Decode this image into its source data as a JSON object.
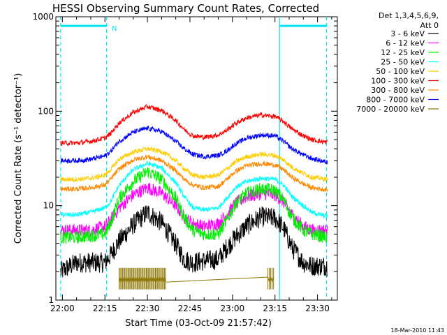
{
  "chart_data": {
    "type": "line",
    "title": "HESSI Observing Summary Count Rates, Corrected",
    "xlabel": "Start Time (03-Oct-09 21:57:42)",
    "ylabel": "Corrected Count Rate (s⁻¹ detector⁻¹)",
    "y_scale": "log",
    "ylim": [
      1,
      1000
    ],
    "xlim_minutes_after_22_00": [
      -2.3,
      97
    ],
    "x_tick_labels": [
      "22:00",
      "22:15",
      "22:30",
      "22:45",
      "23:00",
      "23:15",
      "23:30"
    ],
    "x_tick_minutes_after_22_00": [
      0,
      15,
      30,
      45,
      60,
      75,
      90
    ],
    "y_tick_labels": [
      "1",
      "10",
      "100",
      "1000"
    ],
    "y_tick_values": [
      1,
      10,
      100,
      1000
    ],
    "legend_header": [
      "Det 1,3,4,5,6,9,",
      "Att 0"
    ],
    "legend_placement": "right",
    "timestamp": "18-Mar-2010 11:43",
    "night_label": "N",
    "markers": [
      {
        "style": "dashed",
        "color": "#00e5ee",
        "minute": -0.6
      },
      {
        "style": "dashed",
        "color": "#00e5ee",
        "minute": 15.6
      },
      {
        "style": "solid",
        "color": "#00e5ee",
        "minute": 76.6
      },
      {
        "style": "dashed",
        "color": "#00e5ee",
        "minute": 93.2
      }
    ],
    "bars": [
      {
        "color": "#00e5ee",
        "from_minute": -0.6,
        "to_minute": 15.6,
        "y": 800
      },
      {
        "color": "#00e5ee",
        "from_minute": 76.6,
        "to_minute": 93.2,
        "y": 800
      }
    ],
    "series": [
      {
        "name": "3 - 6 keV",
        "color": "#000000",
        "x": [
          -0.6,
          5,
          10,
          15,
          17,
          20,
          25,
          30,
          35,
          40,
          43,
          46,
          50,
          55,
          58,
          61,
          65,
          70,
          75,
          78,
          81,
          85,
          88,
          91,
          93
        ],
        "y": [
          2.0,
          2.5,
          2.5,
          2.5,
          3.0,
          4.2,
          6.3,
          8.5,
          6.6,
          3.9,
          2.7,
          2.5,
          2.6,
          2.7,
          3.6,
          4.6,
          6.1,
          7.6,
          7.4,
          5.8,
          3.6,
          2.5,
          2.3,
          2.3,
          2.3
        ]
      },
      {
        "name": "6 - 12 keV",
        "color": "#ff00ff",
        "x": [
          -0.6,
          5,
          10,
          15,
          17,
          20,
          25,
          30,
          35,
          40,
          43,
          46,
          50,
          55,
          58,
          61,
          65,
          70,
          75,
          78,
          81,
          85,
          88,
          91,
          93
        ],
        "y": [
          5.5,
          5.5,
          5.5,
          6.0,
          7.0,
          9.5,
          13.0,
          15.5,
          13.5,
          10.0,
          7.5,
          6.5,
          6.0,
          6.5,
          8.0,
          10.5,
          12.5,
          13.5,
          13.0,
          11.0,
          8.0,
          6.0,
          5.5,
          5.5,
          5.5
        ]
      },
      {
        "name": "12 - 25 keV",
        "color": "#00ee00",
        "x": [
          -0.6,
          5,
          10,
          15,
          17,
          20,
          25,
          30,
          35,
          40,
          43,
          46,
          50,
          55,
          58,
          61,
          65,
          70,
          75,
          78,
          81,
          85,
          88,
          91,
          93
        ],
        "y": [
          4.6,
          4.6,
          4.8,
          5.0,
          6.5,
          12.0,
          18.0,
          23.0,
          19.0,
          12.0,
          7.5,
          5.5,
          5.0,
          5.0,
          7.0,
          10.5,
          13.5,
          15.0,
          14.5,
          11.5,
          7.5,
          5.5,
          5.0,
          4.8,
          4.6
        ]
      },
      {
        "name": "25 - 50 keV",
        "color": "#00ffff",
        "x": [
          -0.6,
          5,
          10,
          15,
          17,
          20,
          25,
          30,
          35,
          40,
          43,
          46,
          50,
          55,
          58,
          61,
          65,
          70,
          75,
          78,
          81,
          85,
          88,
          91,
          93
        ],
        "y": [
          8.0,
          8.0,
          8.5,
          9.5,
          11.0,
          16.5,
          24.0,
          28.0,
          25.0,
          17.5,
          12.5,
          9.5,
          9.0,
          9.5,
          12.0,
          15.5,
          18.0,
          19.5,
          19.0,
          16.5,
          12.5,
          10.0,
          8.5,
          8.0,
          7.8
        ]
      },
      {
        "name": "50 - 100 keV",
        "color": "#ffcc00",
        "x": [
          -0.6,
          5,
          10,
          15,
          17,
          20,
          25,
          30,
          35,
          40,
          43,
          46,
          50,
          55,
          58,
          61,
          65,
          70,
          75,
          78,
          81,
          85,
          88,
          91,
          93
        ],
        "y": [
          19.0,
          19.0,
          19.5,
          21.0,
          24.0,
          31.0,
          37.0,
          40.0,
          37.5,
          30.0,
          24.5,
          21.0,
          20.0,
          21.0,
          24.5,
          29.0,
          33.0,
          35.0,
          34.0,
          30.5,
          25.5,
          22.0,
          20.0,
          19.5,
          19.0
        ]
      },
      {
        "name": "100 - 300 keV",
        "color": "#ff0000",
        "x": [
          -0.6,
          5,
          10,
          15,
          17,
          20,
          25,
          30,
          35,
          40,
          43,
          46,
          50,
          55,
          58,
          61,
          65,
          70,
          75,
          78,
          81,
          85,
          88,
          91,
          93
        ],
        "y": [
          46.0,
          46.0,
          48.0,
          52.0,
          58.0,
          75.0,
          97.0,
          112.0,
          102.0,
          80.0,
          64.0,
          55.0,
          53.0,
          56.0,
          63.0,
          74.0,
          85.0,
          91.0,
          88.0,
          78.0,
          65.0,
          55.0,
          50.0,
          48.0,
          47.0
        ]
      },
      {
        "name": "300 - 800 keV",
        "color": "#ff8800",
        "x": [
          -0.6,
          5,
          10,
          15,
          17,
          20,
          25,
          30,
          35,
          40,
          43,
          46,
          50,
          55,
          58,
          61,
          65,
          70,
          75,
          78,
          81,
          85,
          88,
          91,
          93
        ],
        "y": [
          15.0,
          15.0,
          15.5,
          16.5,
          19.0,
          24.5,
          30.5,
          33.0,
          30.0,
          23.5,
          19.0,
          16.5,
          15.5,
          16.0,
          19.0,
          23.0,
          26.5,
          28.0,
          27.0,
          24.0,
          20.0,
          17.0,
          15.5,
          15.0,
          14.8
        ]
      },
      {
        "name": "800 - 7000 keV",
        "color": "#0000ff",
        "x": [
          -0.6,
          5,
          10,
          15,
          17,
          20,
          25,
          30,
          35,
          40,
          43,
          46,
          50,
          55,
          58,
          61,
          65,
          70,
          75,
          78,
          81,
          85,
          88,
          91,
          93
        ],
        "y": [
          30.0,
          30.0,
          31.0,
          33.5,
          37.5,
          48.0,
          60.0,
          66.0,
          61.0,
          48.0,
          40.0,
          35.0,
          33.0,
          34.0,
          38.0,
          45.0,
          52.0,
          56.0,
          55.0,
          48.0,
          40.0,
          34.5,
          31.5,
          30.0,
          29.0
        ]
      },
      {
        "name": "7000 - 20000 keV",
        "color": "#8b7500",
        "x": [
          20,
          20.4,
          20.8,
          21.2,
          21.6,
          22,
          22.4,
          22.8,
          23.2,
          23.6,
          24,
          24.4,
          24.8,
          25.2,
          25.6,
          26,
          26.4,
          26.8,
          27.2,
          27.6,
          28,
          28.4,
          28.8,
          29.2,
          29.6,
          30,
          30.4,
          30.8,
          31.2,
          31.6,
          32,
          32.4,
          32.8,
          33.2,
          33.6,
          34,
          34.4,
          34.8,
          35.2,
          35.6,
          36,
          36.4,
          72.5,
          73,
          73.5,
          74,
          74.5
        ],
        "y": [
          1.75,
          1.55,
          1.75,
          1.55,
          1.75,
          1.55,
          1.75,
          1.55,
          1.75,
          1.55,
          1.75,
          1.55,
          1.75,
          1.55,
          1.75,
          1.55,
          1.75,
          1.55,
          1.75,
          1.55,
          1.75,
          1.55,
          1.75,
          1.55,
          1.75,
          1.55,
          1.75,
          1.55,
          1.75,
          1.55,
          1.75,
          1.55,
          1.75,
          1.55,
          1.75,
          1.55,
          1.75,
          1.55,
          1.75,
          1.55,
          1.75,
          1.55,
          1.75,
          1.55,
          1.75,
          1.55,
          1.75
        ]
      }
    ]
  }
}
